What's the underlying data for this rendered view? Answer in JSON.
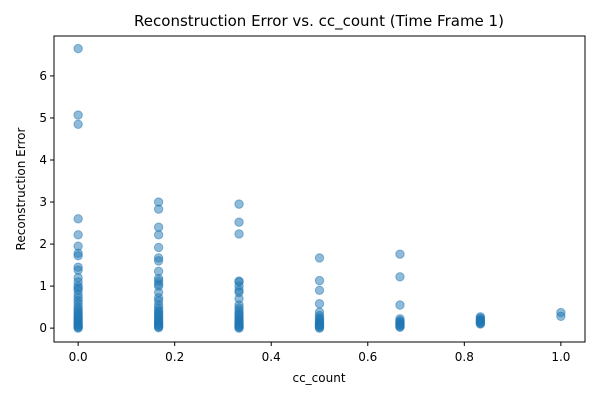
{
  "chart_data": {
    "type": "scatter",
    "title": "Reconstruction Error vs. cc_count (Time Frame 1)",
    "xlabel": "cc_count",
    "ylabel": "Reconstruction Error",
    "xlim": [
      -0.05,
      1.05
    ],
    "ylim": [
      -0.33,
      6.95
    ],
    "xticks": [
      0.0,
      0.2,
      0.4,
      0.6,
      0.8,
      1.0
    ],
    "xtick_labels": [
      "0.0",
      "0.2",
      "0.4",
      "0.6",
      "0.8",
      "1.0"
    ],
    "yticks": [
      0,
      1,
      2,
      3,
      4,
      5,
      6
    ],
    "ytick_labels": [
      "0",
      "1",
      "2",
      "3",
      "4",
      "5",
      "6"
    ],
    "grid": false,
    "point_color": "#1f77b4",
    "point_opacity": 0.5,
    "groups": [
      {
        "x": 0.0,
        "y": [
          6.65,
          5.07,
          4.85,
          2.6,
          2.22,
          1.95,
          1.78,
          1.72,
          1.45,
          1.38,
          1.2,
          1.1,
          1.0,
          0.95,
          0.9,
          0.8,
          0.72,
          0.65,
          0.58,
          0.5,
          0.45,
          0.4,
          0.36,
          0.32,
          0.28,
          0.25,
          0.22,
          0.19,
          0.16,
          0.13,
          0.1,
          0.08,
          0.06,
          0.04,
          0.02,
          0.0
        ]
      },
      {
        "x": 0.1667,
        "y": [
          3.0,
          2.83,
          2.4,
          2.22,
          1.92,
          1.67,
          1.6,
          1.35,
          1.18,
          1.12,
          1.05,
          1.0,
          0.85,
          0.72,
          0.65,
          0.55,
          0.48,
          0.42,
          0.38,
          0.34,
          0.3,
          0.26,
          0.22,
          0.19,
          0.16,
          0.13,
          0.1,
          0.08,
          0.05,
          0.03,
          0.01
        ]
      },
      {
        "x": 0.3333,
        "y": [
          2.95,
          2.52,
          2.24,
          1.12,
          1.1,
          1.0,
          0.9,
          0.85,
          0.7,
          0.55,
          0.48,
          0.42,
          0.36,
          0.32,
          0.28,
          0.24,
          0.2,
          0.17,
          0.14,
          0.11,
          0.08,
          0.06,
          0.04,
          0.02,
          0.0
        ]
      },
      {
        "x": 0.5,
        "y": [
          1.67,
          1.13,
          0.9,
          0.58,
          0.38,
          0.3,
          0.25,
          0.21,
          0.18,
          0.15,
          0.12,
          0.1,
          0.08,
          0.06,
          0.04,
          0.02,
          0.0
        ]
      },
      {
        "x": 0.6667,
        "y": [
          1.76,
          1.22,
          0.55,
          0.22,
          0.18,
          0.15,
          0.12,
          0.1,
          0.08,
          0.06,
          0.04,
          0.02
        ]
      },
      {
        "x": 0.8333,
        "y": [
          0.27,
          0.24,
          0.21,
          0.19,
          0.17,
          0.15,
          0.13,
          0.11,
          0.1
        ]
      },
      {
        "x": 1.0,
        "y": [
          0.37,
          0.28
        ]
      }
    ]
  }
}
